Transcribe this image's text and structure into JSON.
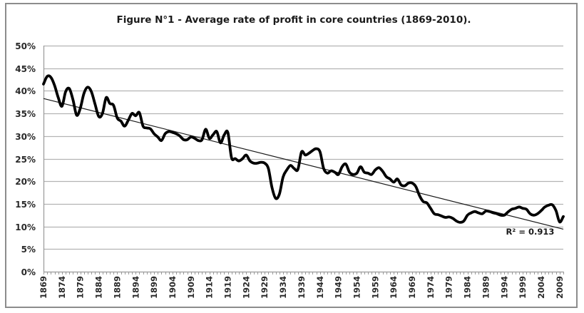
{
  "chart_data": {
    "type": "line",
    "title": "Figure N°1 - Average rate of profit in core countries (1869-2010).",
    "xlabel": "",
    "ylabel": "",
    "xlim": [
      1869,
      2010
    ],
    "ylim": [
      0,
      0.5
    ],
    "grid": true,
    "legend": "none",
    "y_ticks": [
      0,
      0.05,
      0.1,
      0.15,
      0.2,
      0.25,
      0.3,
      0.35,
      0.4,
      0.45,
      0.5
    ],
    "y_tick_labels": [
      "0%",
      "5%",
      "10%",
      "15%",
      "20%",
      "25%",
      "30%",
      "35%",
      "40%",
      "45%",
      "50%"
    ],
    "x_tick_labels": [
      "1869",
      "1874",
      "1879",
      "1884",
      "1889",
      "1894",
      "1899",
      "1904",
      "1909",
      "1914",
      "1919",
      "1924",
      "1929",
      "1934",
      "1939",
      "1944",
      "1949",
      "1954",
      "1959",
      "1964",
      "1969",
      "1974",
      "1979",
      "1984",
      "1989",
      "1994",
      "1999",
      "2004",
      "2009"
    ],
    "series": [
      {
        "name": "Average rate of profit",
        "color": "#000000",
        "x": [
          1869,
          1870,
          1871,
          1872,
          1873,
          1874,
          1875,
          1876,
          1877,
          1878,
          1879,
          1880,
          1881,
          1882,
          1883,
          1884,
          1885,
          1886,
          1887,
          1888,
          1889,
          1890,
          1891,
          1892,
          1893,
          1894,
          1895,
          1896,
          1897,
          1898,
          1899,
          1900,
          1901,
          1902,
          1903,
          1904,
          1905,
          1906,
          1907,
          1908,
          1909,
          1910,
          1911,
          1912,
          1913,
          1914,
          1915,
          1916,
          1917,
          1918,
          1919,
          1920,
          1921,
          1922,
          1923,
          1924,
          1925,
          1926,
          1927,
          1928,
          1929,
          1930,
          1931,
          1932,
          1933,
          1934,
          1935,
          1936,
          1937,
          1938,
          1939,
          1940,
          1941,
          1942,
          1943,
          1944,
          1945,
          1946,
          1947,
          1948,
          1949,
          1950,
          1951,
          1952,
          1953,
          1954,
          1955,
          1956,
          1957,
          1958,
          1959,
          1960,
          1961,
          1962,
          1963,
          1964,
          1965,
          1966,
          1967,
          1968,
          1969,
          1970,
          1971,
          1972,
          1973,
          1974,
          1975,
          1976,
          1977,
          1978,
          1979,
          1980,
          1981,
          1982,
          1983,
          1984,
          1985,
          1986,
          1987,
          1988,
          1989,
          1990,
          1991,
          1992,
          1993,
          1994,
          1995,
          1996,
          1997,
          1998,
          1999,
          2000,
          2001,
          2002,
          2003,
          2004,
          2005,
          2006,
          2007,
          2008,
          2009,
          2010
        ],
        "y": [
          0.415,
          0.432,
          0.43,
          0.412,
          0.385,
          0.366,
          0.398,
          0.405,
          0.38,
          0.346,
          0.362,
          0.395,
          0.408,
          0.398,
          0.37,
          0.343,
          0.35,
          0.385,
          0.372,
          0.368,
          0.34,
          0.333,
          0.322,
          0.335,
          0.35,
          0.345,
          0.352,
          0.322,
          0.318,
          0.316,
          0.305,
          0.298,
          0.29,
          0.305,
          0.31,
          0.308,
          0.305,
          0.3,
          0.292,
          0.292,
          0.298,
          0.295,
          0.29,
          0.292,
          0.315,
          0.295,
          0.303,
          0.31,
          0.285,
          0.302,
          0.308,
          0.252,
          0.25,
          0.245,
          0.25,
          0.258,
          0.245,
          0.24,
          0.24,
          0.242,
          0.24,
          0.228,
          0.185,
          0.162,
          0.172,
          0.21,
          0.225,
          0.235,
          0.228,
          0.226,
          0.265,
          0.258,
          0.262,
          0.268,
          0.272,
          0.265,
          0.228,
          0.218,
          0.223,
          0.22,
          0.215,
          0.232,
          0.238,
          0.22,
          0.215,
          0.218,
          0.232,
          0.22,
          0.218,
          0.215,
          0.225,
          0.23,
          0.222,
          0.21,
          0.205,
          0.198,
          0.205,
          0.192,
          0.19,
          0.196,
          0.196,
          0.188,
          0.168,
          0.155,
          0.152,
          0.14,
          0.128,
          0.126,
          0.123,
          0.12,
          0.121,
          0.118,
          0.112,
          0.109,
          0.112,
          0.125,
          0.13,
          0.133,
          0.13,
          0.128,
          0.134,
          0.133,
          0.13,
          0.128,
          0.125,
          0.125,
          0.132,
          0.138,
          0.14,
          0.143,
          0.14,
          0.138,
          0.128,
          0.125,
          0.128,
          0.135,
          0.143,
          0.147,
          0.148,
          0.135,
          0.11,
          0.122
        ]
      },
      {
        "name": "Linear trend",
        "color": "#1a1a1a",
        "x": [
          1869,
          2010
        ],
        "y": [
          0.383,
          0.094
        ]
      }
    ],
    "annotations": [
      {
        "text": "R² = 0.913",
        "x": 1995,
        "y": 0.085
      }
    ]
  }
}
